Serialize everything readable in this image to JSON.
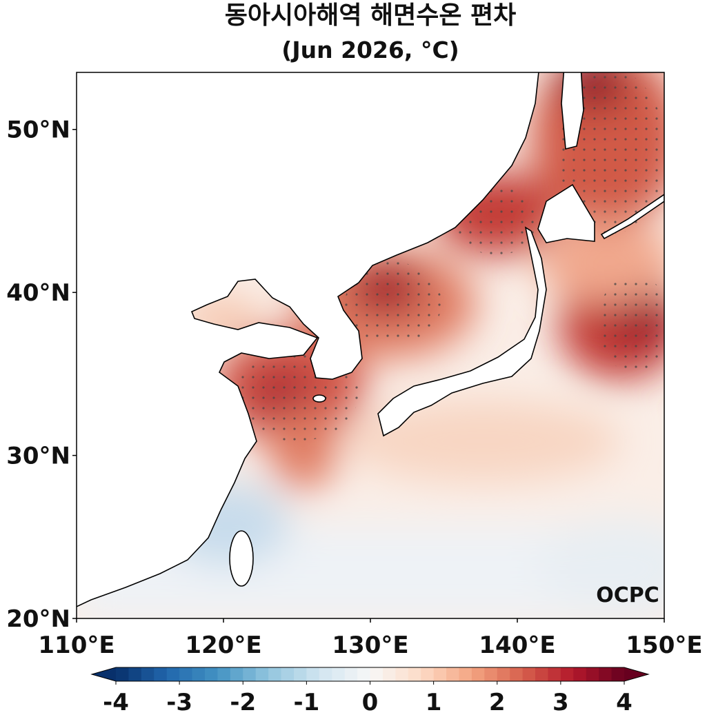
{
  "title": [
    "동아시아해역 해면수온 편차",
    "(Jun 2026, °C)"
  ],
  "map": {
    "xlim": [
      110,
      150
    ],
    "ylim": [
      20,
      53.5
    ],
    "xticks": [
      {
        "value": 110,
        "label": "110°E"
      },
      {
        "value": 120,
        "label": "120°E"
      },
      {
        "value": 130,
        "label": "130°E"
      },
      {
        "value": 140,
        "label": "140°E"
      },
      {
        "value": 150,
        "label": "150°E"
      }
    ],
    "yticks": [
      {
        "value": 20,
        "label": "20°N"
      },
      {
        "value": 30,
        "label": "30°N"
      },
      {
        "value": 40,
        "label": "40°N"
      },
      {
        "value": 50,
        "label": "50°N"
      }
    ]
  },
  "colorbar": {
    "lim": [
      -4,
      4
    ],
    "ticks": [
      -4,
      -3,
      -2,
      -1,
      0,
      1,
      2,
      3,
      4
    ],
    "colors": [
      "#08306b",
      "#2166ac",
      "#4393c3",
      "#92c5de",
      "#d1e5f0",
      "#f7f7f7",
      "#fddbc7",
      "#f4a582",
      "#d6604d",
      "#b2182b",
      "#67001f"
    ]
  },
  "logo": "OCPC"
}
